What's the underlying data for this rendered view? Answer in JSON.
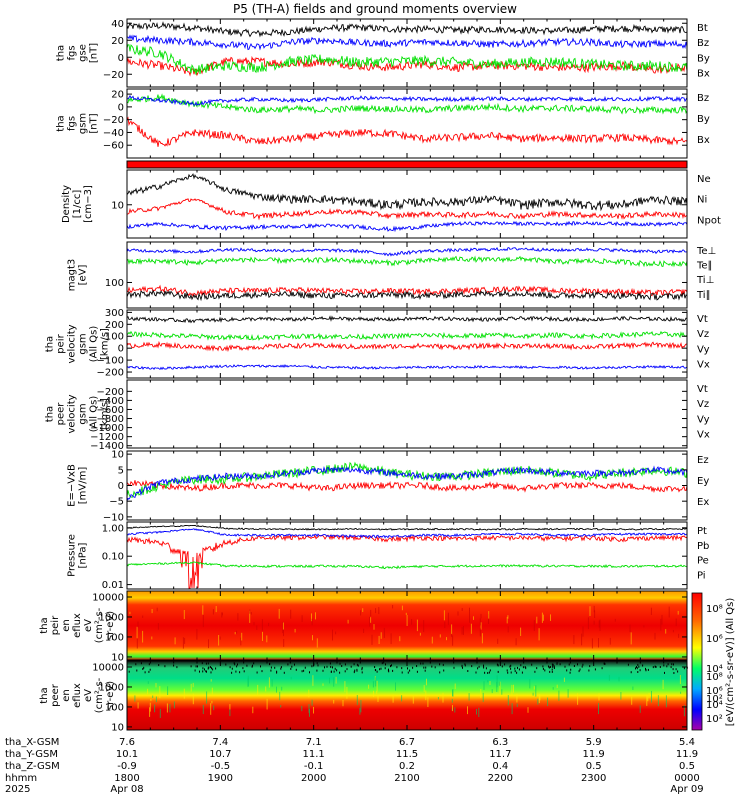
{
  "title": "P5 (TH-A) fields and ground moments overview",
  "colors": {
    "black": "#000000",
    "red": "#ff0000",
    "green": "#00e000",
    "blue": "#0000ff"
  },
  "chart_data": {
    "type": "line",
    "x_range": [
      "1800",
      "0000"
    ],
    "panels": [
      {
        "id": "fgs_gse",
        "ylabel": [
          "tha",
          "fgs",
          "gse",
          "[nT]"
        ],
        "ylim": [
          -35,
          45
        ],
        "yticks": [
          {
            "v": 40,
            "t": "40"
          },
          {
            "v": 20,
            "t": "20"
          },
          {
            "v": 0,
            "t": "0"
          },
          {
            "v": -20,
            "t": "−20"
          }
        ],
        "series": [
          {
            "name": "Bt",
            "color": "#000000",
            "base": 32,
            "noise": 4,
            "profile": [
              36,
              37,
              35,
              30,
              28,
              30,
              34,
              35,
              33,
              33,
              32,
              33,
              32,
              31,
              33,
              34,
              33,
              32
            ]
          },
          {
            "name": "Bz",
            "color": "#ff0000",
            "base": -10,
            "noise": 5,
            "profile": [
              -5,
              -10,
              -18,
              -5,
              -5,
              -8,
              -5,
              -10,
              -12,
              -8,
              -12,
              -10,
              -10,
              -12,
              -12,
              -10,
              -15,
              -12
            ]
          },
          {
            "name": "By",
            "color": "#00e000",
            "base": -5,
            "noise": 6,
            "profile": [
              10,
              5,
              -15,
              -10,
              -12,
              -5,
              -2,
              -6,
              -5,
              -4,
              -6,
              -8,
              -6,
              -5,
              -8,
              -10,
              -10,
              -12
            ]
          },
          {
            "name": "Bx",
            "color": "#0000ff",
            "base": 15,
            "noise": 4,
            "profile": [
              22,
              20,
              18,
              15,
              12,
              18,
              20,
              17,
              16,
              18,
              17,
              15,
              16,
              18,
              18,
              15,
              16,
              15
            ]
          }
        ]
      },
      {
        "id": "fgs_gsm",
        "ylabel": [
          "tha",
          "fgs",
          "gsm",
          "[nT]"
        ],
        "ylim": [
          -80,
          28
        ],
        "yticks": [
          {
            "v": 20,
            "t": "20"
          },
          {
            "v": 0,
            "t": "0"
          },
          {
            "v": -20,
            "t": "−20"
          },
          {
            "v": -40,
            "t": "−40"
          },
          {
            "v": -60,
            "t": "−60"
          }
        ],
        "series": [
          {
            "name": "Bz",
            "color": "#ff0000",
            "base": -50,
            "noise": 6,
            "profile": [
              -20,
              -60,
              -40,
              -45,
              -55,
              -50,
              -45,
              -40,
              -42,
              -50,
              -48,
              -45,
              -50,
              -48,
              -50,
              -48,
              -52,
              -55
            ]
          },
          {
            "name": "By",
            "color": "#00e000",
            "base": 0,
            "noise": 5,
            "profile": [
              10,
              15,
              5,
              0,
              -5,
              -3,
              -5,
              -2,
              -3,
              -5,
              -2,
              0,
              -3,
              -2,
              -3,
              -5,
              -5,
              -5
            ]
          },
          {
            "name": "Bx",
            "color": "#0000ff",
            "base": 10,
            "noise": 3,
            "profile": [
              15,
              10,
              5,
              10,
              12,
              10,
              12,
              14,
              13,
              12,
              12,
              13,
              12,
              13,
              12,
              12,
              13,
              12
            ]
          }
        ]
      },
      {
        "id": "bar",
        "ylabel": [],
        "bar_color": "#ff0000"
      },
      {
        "id": "density",
        "ylabel": [
          "Density",
          "[1/cc]",
          "[cm−3]"
        ],
        "ylim": [
          3.5,
          30
        ],
        "log": true,
        "yticks": [
          {
            "v": 10,
            "t": "10"
          }
        ],
        "series": [
          {
            "name": "Ne",
            "color": "#ff0000",
            "base": 8,
            "noise": 0.6,
            "profile": [
              8,
              9,
              12,
              8,
              7,
              7.5,
              8,
              8,
              7,
              7.5,
              7.2,
              7.5,
              7,
              7.5,
              7.2,
              7,
              7.5,
              7.2
            ]
          },
          {
            "name": "Ni",
            "color": "#000000",
            "base": 12,
            "noise": 1.5,
            "profile": [
              14,
              18,
              25,
              16,
              13,
              12,
              12,
              11,
              10,
              11,
              11,
              12,
              10,
              11,
              10,
              10,
              12,
              11
            ]
          },
          {
            "name": "Npot",
            "color": "#0000ff",
            "base": 5,
            "noise": 0.3,
            "profile": [
              5,
              5.5,
              5,
              4.8,
              5,
              5,
              5.2,
              5,
              4.6,
              5,
              5.5,
              5.6,
              5.5,
              5.5,
              5.6,
              5.5,
              5.4,
              5.5
            ]
          }
        ]
      },
      {
        "id": "temp",
        "ylabel": [
          "magt3",
          "[eV]"
        ],
        "ylim": [
          50,
          300
        ],
        "log": true,
        "yticks": [
          {
            "v": 100,
            "t": "100"
          }
        ],
        "series": [
          {
            "name": "Te⊥",
            "color": "#ff0000",
            "base": 80,
            "noise": 6,
            "profile": [
              80,
              85,
              75,
              80,
              80,
              82,
              80,
              78,
              80,
              78,
              80,
              82,
              85,
              80,
              80,
              78,
              75,
              78
            ]
          },
          {
            "name": "Te∥",
            "color": "#000000",
            "base": 75,
            "noise": 6,
            "profile": [
              72,
              75,
              68,
              70,
              72,
              72,
              70,
              70,
              72,
              70,
              72,
              74,
              75,
              70,
              72,
              70,
              68,
              70
            ]
          },
          {
            "name": "Ti⊥",
            "color": "#0000ff",
            "base": 240,
            "noise": 10,
            "profile": [
              240,
              235,
              230,
              245,
              240,
              238,
              240,
              235,
              215,
              235,
              240,
              245,
              250,
              240,
              245,
              240,
              230,
              235
            ]
          },
          {
            "name": "Ti∥",
            "color": "#00e000",
            "base": 180,
            "noise": 12,
            "profile": [
              175,
              180,
              170,
              185,
              185,
              180,
              185,
              180,
              170,
              180,
              190,
              185,
              190,
              175,
              180,
              175,
              165,
              170
            ]
          }
        ]
      },
      {
        "id": "vel_gsm",
        "ylabel": [
          "tha",
          "peir",
          "velocity",
          "gsm",
          "(All Qs)",
          "[km/s]"
        ],
        "ylim": [
          -250,
          320
        ],
        "yticks": [
          {
            "v": 300,
            "t": "300"
          },
          {
            "v": 200,
            "t": "200"
          },
          {
            "v": 100,
            "t": "100"
          },
          {
            "v": 0,
            "t": "0"
          },
          {
            "v": -100,
            "t": "−100"
          },
          {
            "v": -200,
            "t": "−200"
          }
        ],
        "series": [
          {
            "name": "Vt",
            "color": "#000000",
            "base": 240,
            "noise": 15,
            "profile": [
              250,
              240,
              230,
              240,
              245,
              240,
              250,
              245,
              240,
              250,
              245,
              240,
              250,
              245,
              240,
              250,
              245,
              240
            ]
          },
          {
            "name": "Vz",
            "color": "#ff0000",
            "base": 20,
            "noise": 20,
            "profile": [
              20,
              30,
              10,
              0,
              10,
              20,
              20,
              10,
              15,
              20,
              10,
              20,
              20,
              15,
              10,
              20,
              30,
              20
            ]
          },
          {
            "name": "Vy",
            "color": "#00e000",
            "base": 100,
            "noise": 20,
            "profile": [
              120,
              110,
              100,
              90,
              90,
              100,
              100,
              95,
              100,
              110,
              100,
              110,
              100,
              110,
              100,
              110,
              120,
              110
            ]
          },
          {
            "name": "Vx",
            "color": "#0000ff",
            "base": -160,
            "noise": 10,
            "profile": [
              -160,
              -170,
              -160,
              -150,
              -150,
              -150,
              -160,
              -165,
              -165,
              -160,
              -160,
              -155,
              -160,
              -160,
              -165,
              -160,
              -155,
              -160
            ]
          }
        ]
      },
      {
        "id": "vel_peer",
        "ylabel": [
          "tha",
          "peer",
          "velocity",
          "gsm",
          "(All Qs)",
          "[km/s]"
        ],
        "ylim": [
          -1450,
          50
        ],
        "yticks": [
          {
            "v": -200,
            "t": "−200"
          },
          {
            "v": -400,
            "t": "−400"
          },
          {
            "v": -600,
            "t": "−600"
          },
          {
            "v": -800,
            "t": "−800"
          },
          {
            "v": -1000,
            "t": "−1000"
          },
          {
            "v": -1200,
            "t": "−1200"
          },
          {
            "v": -1400,
            "t": "−1400"
          }
        ],
        "legend": [
          "Vt",
          "Vz",
          "Vy",
          "Vx"
        ],
        "legend_colors": [
          "#000000",
          "#ff0000",
          "#00e000",
          "#0000ff"
        ],
        "series": []
      },
      {
        "id": "efield",
        "ylabel": [
          "E=−VxB",
          "[mV/m]"
        ],
        "ylim": [
          -11,
          11
        ],
        "yticks": [
          {
            "v": 10,
            "t": "10"
          },
          {
            "v": 5,
            "t": "5"
          },
          {
            "v": 0,
            "t": "0"
          },
          {
            "v": -5,
            "t": "−5"
          },
          {
            "v": -10,
            "t": "−10"
          }
        ],
        "series": [
          {
            "name": "Ez",
            "color": "#ff0000",
            "base": 0,
            "noise": 1,
            "profile": [
              1,
              0,
              -1,
              0,
              0,
              0,
              -1,
              0,
              0,
              0,
              -1,
              0,
              -1,
              0,
              0,
              0,
              -1,
              -1
            ]
          },
          {
            "name": "Ey",
            "color": "#00e000",
            "base": 3,
            "noise": 1.5,
            "profile": [
              -3,
              0,
              2,
              2,
              3,
              4,
              5,
              6,
              4,
              3,
              3,
              4,
              5,
              4,
              3,
              4,
              5,
              4
            ]
          },
          {
            "name": "Ex",
            "color": "#0000ff",
            "base": 3,
            "noise": 1,
            "profile": [
              -4,
              1,
              2,
              3,
              3,
              4,
              5,
              5,
              4,
              3,
              3,
              4,
              5,
              4,
              4,
              4,
              5,
              4
            ]
          }
        ]
      },
      {
        "id": "pressure",
        "ylabel": [
          "Pressure",
          "[nPa]"
        ],
        "ylim": [
          0.007,
          1.6
        ],
        "log": true,
        "yticks": [
          {
            "v": 1,
            "t": "1.00"
          },
          {
            "v": 0.1,
            "t": "0.10"
          },
          {
            "v": 0.01,
            "t": "0.01"
          }
        ],
        "series": [
          {
            "name": "Pt",
            "color": "#000000",
            "base": 0.9,
            "noise": 0.05,
            "profile": [
              1,
              1.1,
              1.2,
              0.95,
              0.9,
              0.9,
              0.88,
              0.9,
              0.88,
              0.9,
              0.9,
              0.88,
              0.9,
              0.9,
              0.9,
              0.88,
              0.9,
              0.9
            ]
          },
          {
            "name": "Pb",
            "color": "#ff0000",
            "base": 0.45,
            "noise": 0.08,
            "profile": [
              0.4,
              0.3,
              0.03,
              0.3,
              0.45,
              0.45,
              0.48,
              0.45,
              0.4,
              0.45,
              0.42,
              0.45,
              0.45,
              0.42,
              0.45,
              0.4,
              0.45,
              0.45
            ]
          },
          {
            "name": "Pe",
            "color": "#00e000",
            "base": 0.045,
            "noise": 0.004,
            "profile": [
              0.05,
              0.055,
              0.06,
              0.045,
              0.045,
              0.044,
              0.045,
              0.044,
              0.04,
              0.044,
              0.045,
              0.046,
              0.046,
              0.045,
              0.045,
              0.044,
              0.045,
              0.045
            ]
          },
          {
            "name": "Pi",
            "color": "#0000ff",
            "base": 0.6,
            "noise": 0.05,
            "profile": [
              0.6,
              0.7,
              0.9,
              0.55,
              0.55,
              0.55,
              0.55,
              0.5,
              0.5,
              0.55,
              0.55,
              0.6,
              0.6,
              0.55,
              0.55,
              0.6,
              0.6,
              0.6
            ]
          }
        ]
      },
      {
        "id": "spec_peir",
        "ylabel": [
          "tha",
          "peir",
          "en",
          "eflux",
          "eV",
          "(cm²-s-",
          "sr-eV)"
        ],
        "ylim": [
          7,
          20000
        ],
        "log": true,
        "yticks": [
          {
            "v": 10000,
            "t": "10000"
          },
          {
            "v": 1000,
            "t": "1000"
          },
          {
            "v": 100,
            "t": "100"
          },
          {
            "v": 10,
            "t": "10"
          }
        ],
        "spectrogram": "ion"
      },
      {
        "id": "spec_peer",
        "ylabel": [
          "tha",
          "peer",
          "en",
          "eflux",
          "eV",
          "(cm²-s-",
          "sr-eV)"
        ],
        "ylim": [
          7,
          20000
        ],
        "log": true,
        "yticks": [
          {
            "v": 10000,
            "t": "10000"
          },
          {
            "v": 1000,
            "t": "1000"
          },
          {
            "v": 100,
            "t": "100"
          },
          {
            "v": 10,
            "t": "10"
          }
        ],
        "spectrogram": "electron"
      }
    ],
    "colorbar": {
      "label": "[eV/(cm²-s-sr-eV)] (All Qs)",
      "ticks": [
        "10⁸",
        "10⁶",
        "10⁴",
        "10²"
      ]
    },
    "xaxis_rows": [
      {
        "label": "tha_X-GSM",
        "values": [
          "7.6",
          "7.4",
          "7.1",
          "6.7",
          "6.3",
          "5.9",
          "5.4"
        ]
      },
      {
        "label": "tha_Y-GSM",
        "values": [
          "10.1",
          "10.7",
          "11.1",
          "11.5",
          "11.7",
          "11.9",
          "11.9"
        ]
      },
      {
        "label": "tha_Z-GSM",
        "values": [
          "-0.9",
          "-0.5",
          "-0.1",
          "0.2",
          "0.4",
          "0.5",
          "0.5"
        ]
      },
      {
        "label": "hhmm",
        "values": [
          "1800",
          "1900",
          "2000",
          "2100",
          "2200",
          "2300",
          "0000"
        ]
      },
      {
        "label": "2025",
        "values": [
          "Apr 08",
          "",
          "",
          "",
          "",
          "",
          "Apr 09"
        ]
      }
    ]
  }
}
